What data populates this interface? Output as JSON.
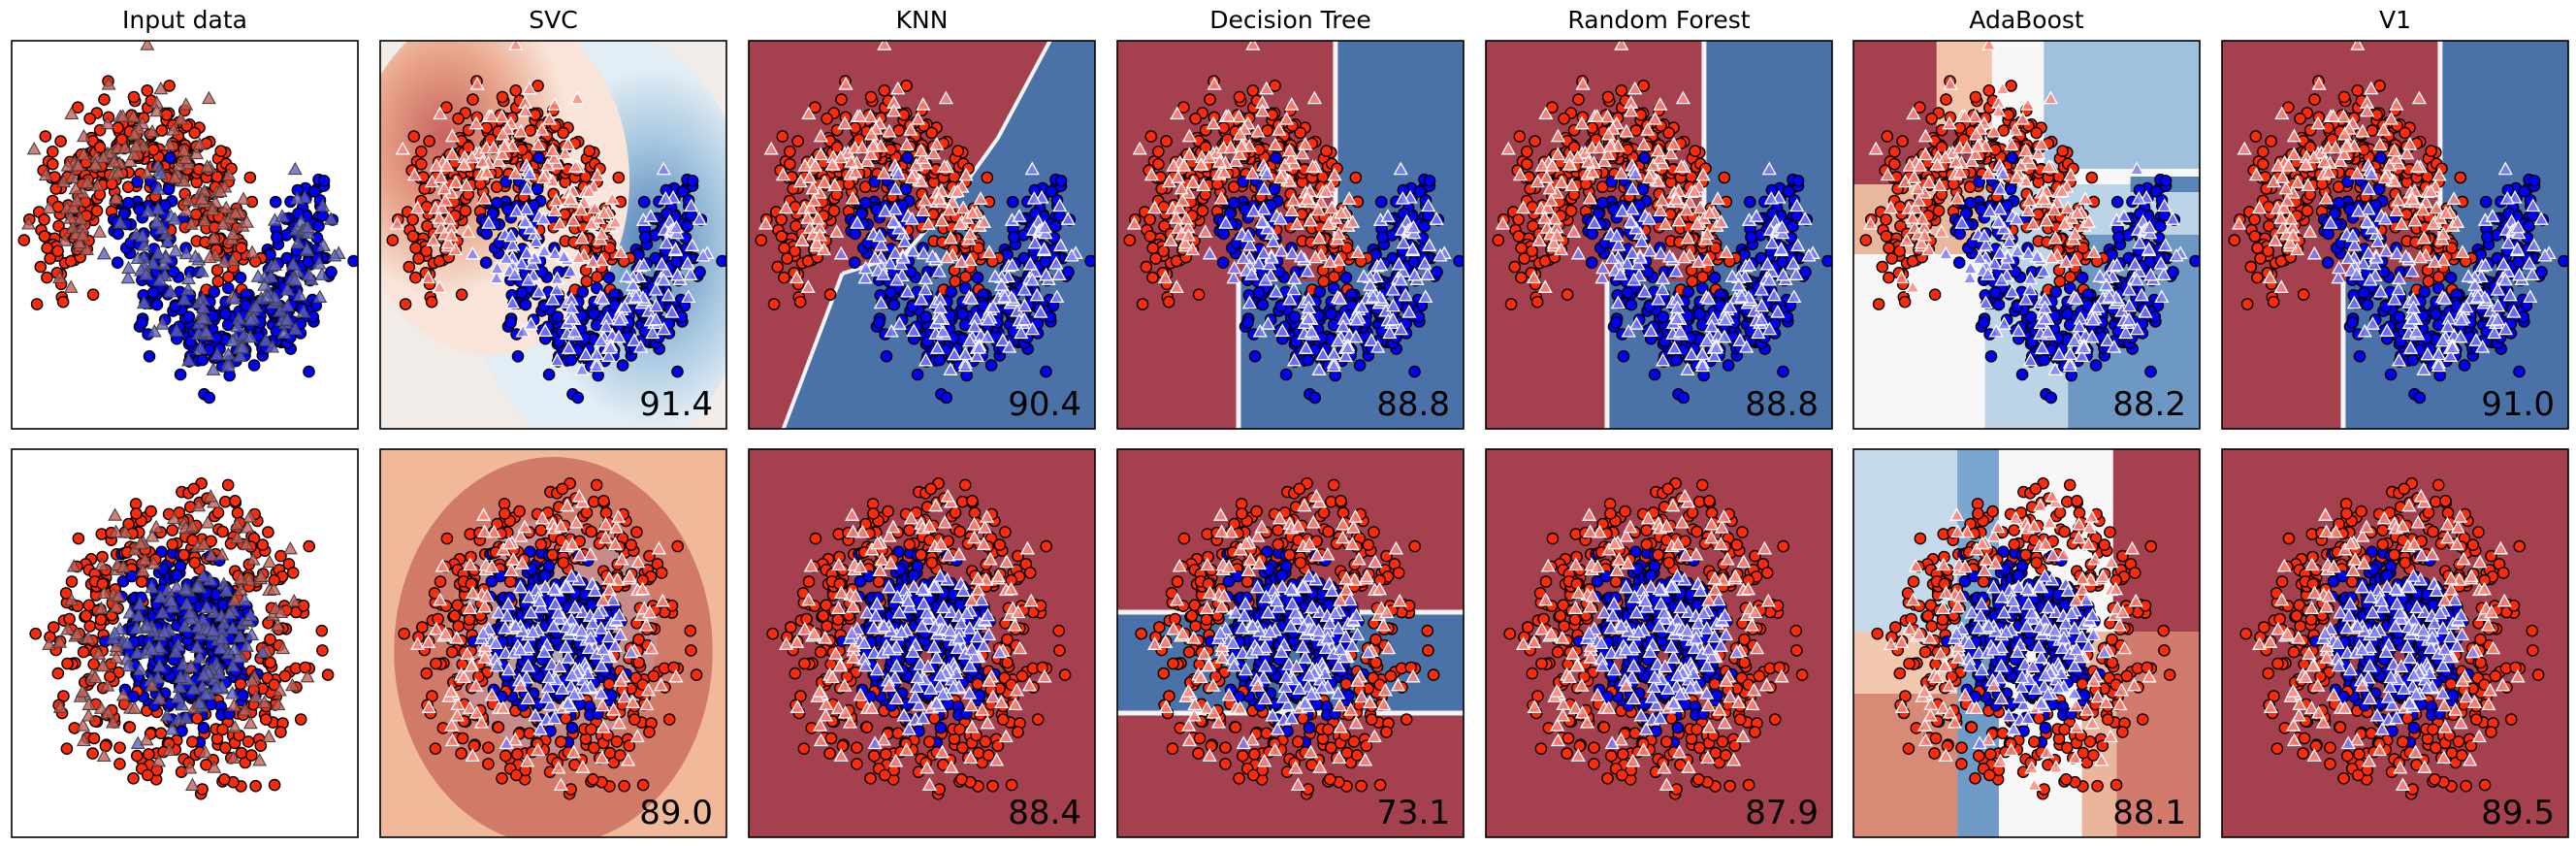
{
  "figure": {
    "columns": [
      "Input data",
      "SVC",
      "KNN",
      "Decision Tree",
      "Random Forest",
      "AdaBoost",
      "V1"
    ],
    "rows": [
      {
        "dataset": "moons",
        "scores": [
          "",
          "91.4",
          "90.4",
          "88.8",
          "88.8",
          "88.2",
          "91.0"
        ]
      },
      {
        "dataset": "circles",
        "scores": [
          "",
          "89.0",
          "88.4",
          "73.1",
          "87.9",
          "88.1",
          "89.5"
        ]
      }
    ]
  },
  "chart_data": {
    "type": "scatter",
    "title": "",
    "grid": false,
    "axes_ticks": false,
    "colors": {
      "class_0": "#ff2a0a",
      "class_1": "#0000ff",
      "class_0_region": "#a5404f",
      "class_1_region": "#4a72a8",
      "neutral": "#f7f7f7"
    },
    "markers": {
      "train": "circle",
      "test": "triangle"
    },
    "panels": [
      {
        "row": 0,
        "col": 0,
        "title": "Input data",
        "dataset": "moons",
        "score": null
      },
      {
        "row": 0,
        "col": 1,
        "title": "SVC",
        "dataset": "moons",
        "score": 91.4,
        "boundary": "smooth-probability"
      },
      {
        "row": 0,
        "col": 2,
        "title": "KNN",
        "dataset": "moons",
        "score": 90.4,
        "boundary": "diagonal-step"
      },
      {
        "row": 0,
        "col": 3,
        "title": "Decision Tree",
        "dataset": "moons",
        "score": 88.8,
        "boundary": "vertical-split"
      },
      {
        "row": 0,
        "col": 4,
        "title": "Random Forest",
        "dataset": "moons",
        "score": 88.8,
        "boundary": "vertical-split"
      },
      {
        "row": 0,
        "col": 5,
        "title": "AdaBoost",
        "dataset": "moons",
        "score": 88.2,
        "boundary": "axis-aligned-boxes"
      },
      {
        "row": 0,
        "col": 6,
        "title": "V1",
        "dataset": "moons",
        "score": 91.0,
        "boundary": "vertical-split"
      },
      {
        "row": 1,
        "col": 0,
        "title": "Input data",
        "dataset": "circles",
        "score": null
      },
      {
        "row": 1,
        "col": 1,
        "title": "SVC",
        "dataset": "circles",
        "score": 89.0,
        "boundary": "smooth-probability"
      },
      {
        "row": 1,
        "col": 2,
        "title": "KNN",
        "dataset": "circles",
        "score": 88.4,
        "boundary": "uniform"
      },
      {
        "row": 1,
        "col": 3,
        "title": "Decision Tree",
        "dataset": "circles",
        "score": 73.1,
        "boundary": "horizontal-band"
      },
      {
        "row": 1,
        "col": 4,
        "title": "Random Forest",
        "dataset": "circles",
        "score": 87.9,
        "boundary": "uniform"
      },
      {
        "row": 1,
        "col": 5,
        "title": "AdaBoost",
        "dataset": "circles",
        "score": 88.1,
        "boundary": "axis-aligned-boxes"
      },
      {
        "row": 1,
        "col": 6,
        "title": "V1",
        "dataset": "circles",
        "score": 89.5,
        "boundary": "uniform"
      }
    ]
  }
}
